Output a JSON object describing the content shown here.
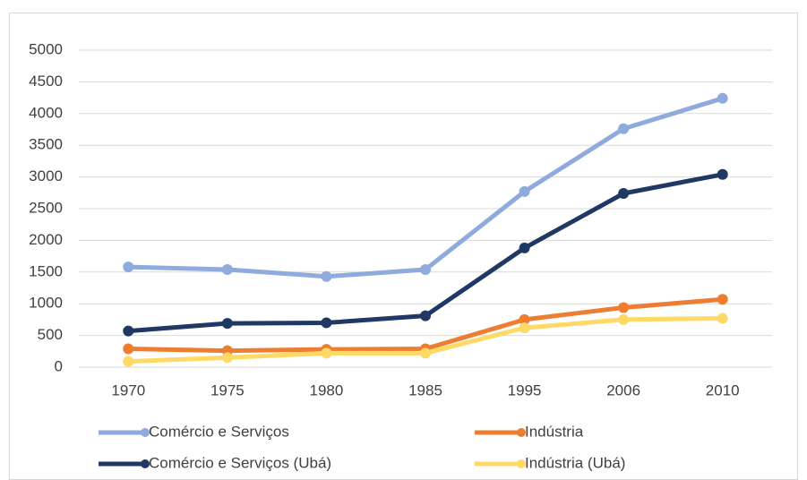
{
  "chart_data": {
    "type": "line",
    "categories": [
      "1970",
      "1975",
      "1980",
      "1985",
      "1995",
      "2006",
      "2010"
    ],
    "series": [
      {
        "name": "Comércio e Serviços",
        "color": "#8faadc",
        "values": [
          1580,
          1540,
          1430,
          1540,
          2770,
          3760,
          4240
        ]
      },
      {
        "name": "Indústria",
        "color": "#ed7d31",
        "values": [
          290,
          260,
          280,
          290,
          750,
          940,
          1070
        ]
      },
      {
        "name": "Comércio e Serviços (Ubá)",
        "color": "#1f3864",
        "values": [
          570,
          690,
          700,
          810,
          1880,
          2740,
          3040
        ]
      },
      {
        "name": "Indústria (Ubá)",
        "color": "#ffd966",
        "values": [
          90,
          150,
          220,
          220,
          620,
          750,
          770
        ]
      }
    ],
    "ylim": [
      0,
      5000
    ],
    "yticks": [
      0,
      500,
      1000,
      1500,
      2000,
      2500,
      3000,
      3500,
      4000,
      4500,
      5000
    ],
    "grid": true,
    "legend": "bottom"
  }
}
